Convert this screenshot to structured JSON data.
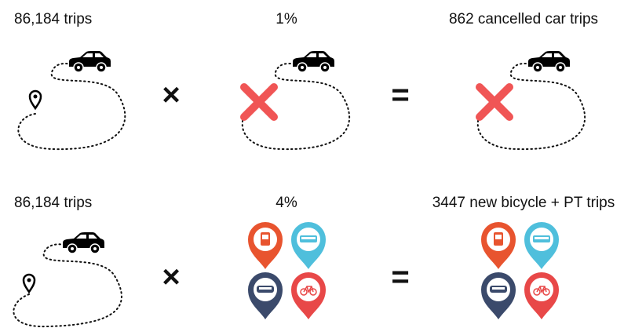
{
  "rows": [
    {
      "left": "86,184 trips",
      "times": "×",
      "middle": "1%",
      "equals": "=",
      "right": "862 cancelled car trips"
    },
    {
      "left": "86,184 trips",
      "times": "×",
      "middle": "4%",
      "equals": "=",
      "right": "3447 new bicycle + PT trips"
    }
  ]
}
